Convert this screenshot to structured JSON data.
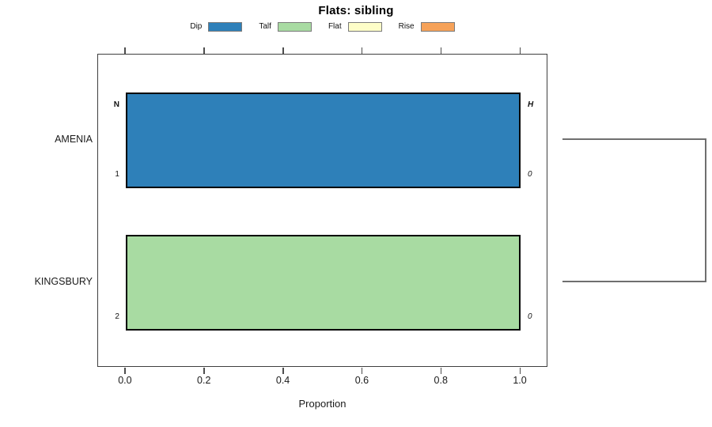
{
  "figure": {
    "title": "Flats: sibling"
  },
  "chart_data": {
    "type": "bar",
    "orientation": "horizontal",
    "stacked": true,
    "title": "Flats: sibling",
    "xlabel": "Proportion",
    "ylabel": "",
    "xlim": [
      -0.07,
      1.07
    ],
    "x_tick_values": [
      0.0,
      0.2,
      0.4,
      0.6,
      0.8,
      1.0
    ],
    "x_tick_labels": [
      "0.0",
      "0.2",
      "0.4",
      "0.6",
      "0.8",
      "1.0"
    ],
    "categories": [
      "AMENIA",
      "KINGSBURY"
    ],
    "series": [
      {
        "name": "Dip",
        "color": "#2e80b9",
        "values": [
          1.0,
          0.0
        ]
      },
      {
        "name": "Talf",
        "color": "#a8dba2",
        "values": [
          0.0,
          1.0
        ]
      },
      {
        "name": "Flat",
        "color": "#fdfdc8",
        "values": [
          0.0,
          0.0
        ]
      },
      {
        "name": "Rise",
        "color": "#f6a259",
        "values": [
          0.0,
          0.0
        ]
      }
    ],
    "legend_position": "top",
    "grid": false,
    "bar_annotations": [
      {
        "category": "AMENIA",
        "left_top": "N",
        "left_bottom": "1",
        "right_top": "H",
        "right_bottom": "0"
      },
      {
        "category": "KINGSBURY",
        "left_top": "",
        "left_bottom": "2",
        "right_top": "",
        "right_bottom": "0"
      }
    ],
    "dendrogram": {
      "side": "right",
      "connects": [
        "AMENIA",
        "KINGSBURY"
      ]
    }
  }
}
